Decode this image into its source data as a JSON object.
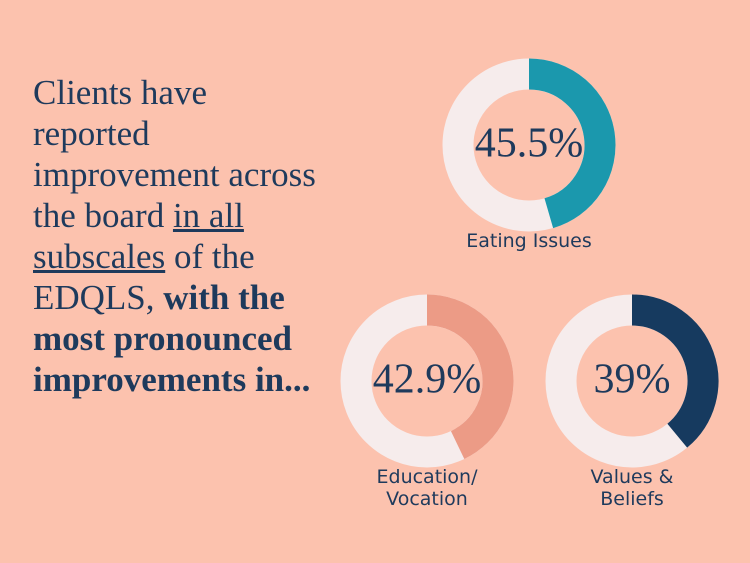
{
  "text": {
    "parts": [
      "Clients have reported improvement across the board ",
      "in all subscales",
      " of the EDQLS, ",
      "with the most pronounced improvements in..."
    ]
  },
  "chart_data": [
    {
      "type": "donut",
      "title": "Eating Issues",
      "values": [
        45.5
      ],
      "value_labels": [
        "45.5%"
      ],
      "ylim": [
        0,
        100
      ],
      "color": "#1b98ad",
      "track_color": "#f6ecec"
    },
    {
      "type": "donut",
      "title": "Education/\nVocation",
      "values": [
        42.9
      ],
      "value_labels": [
        "42.9%"
      ],
      "ylim": [
        0,
        100
      ],
      "color": "#ec9b86",
      "track_color": "#f6ecec"
    },
    {
      "type": "donut",
      "title": "Values &\nBeliefs",
      "values": [
        39
      ],
      "value_labels": [
        "39%"
      ],
      "ylim": [
        0,
        100
      ],
      "color": "#163a5f",
      "track_color": "#f6ecec"
    }
  ]
}
